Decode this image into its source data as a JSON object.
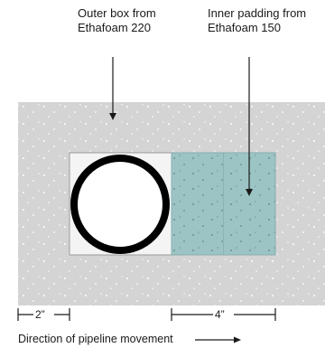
{
  "labels": {
    "outer_box": "Outer box from\nEthafoam 220",
    "inner_padding": "Inner padding from\nEthafoam 150",
    "direction": "Direction of pipeline movement"
  },
  "dimensions": {
    "left": "2”",
    "right": "4”"
  },
  "colors": {
    "outer_foam": "#d4d4d4",
    "inner_padding": "#9cc4c4",
    "pipe": "#000000",
    "cavity": "#f4f4f4"
  }
}
